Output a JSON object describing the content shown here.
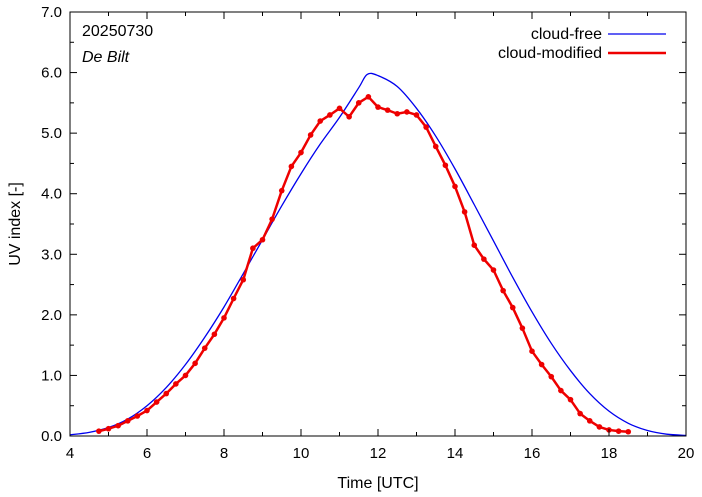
{
  "chart_data": {
    "type": "line",
    "annotations": {
      "date": "20250730",
      "station": "De Bilt"
    },
    "xlabel": "Time  [UTC]",
    "ylabel": "UV index  [-]",
    "xlim": [
      4,
      20
    ],
    "ylim": [
      0,
      7
    ],
    "xticks": [
      4,
      6,
      8,
      10,
      12,
      14,
      16,
      18,
      20
    ],
    "yticks": [
      0,
      1,
      2,
      3,
      4,
      5,
      6,
      7
    ],
    "ytick_labels": [
      "0.0",
      "1.0",
      "2.0",
      "3.0",
      "4.0",
      "5.0",
      "6.0",
      "7.0"
    ],
    "grid": false,
    "legend_position": "top-right",
    "series": [
      {
        "name": "cloud-free",
        "color": "#0000ee",
        "style": "line",
        "peak_time": 11.72,
        "peak_value": 5.97,
        "x": [
          4.0,
          4.5,
          5.0,
          5.5,
          6.0,
          6.5,
          7.0,
          7.5,
          8.0,
          8.5,
          9.0,
          9.5,
          10.0,
          10.5,
          11.0,
          11.5,
          11.72,
          12.0,
          12.5,
          13.0,
          13.5,
          14.0,
          14.5,
          15.0,
          15.5,
          16.0,
          16.5,
          17.0,
          17.5,
          18.0,
          18.5,
          19.0,
          19.5,
          20.0
        ],
        "y": [
          0.02,
          0.06,
          0.14,
          0.28,
          0.5,
          0.8,
          1.18,
          1.63,
          2.13,
          2.68,
          3.24,
          3.8,
          4.33,
          4.82,
          5.26,
          5.75,
          5.97,
          5.95,
          5.77,
          5.41,
          4.95,
          4.41,
          3.82,
          3.22,
          2.62,
          2.05,
          1.53,
          1.08,
          0.7,
          0.41,
          0.21,
          0.09,
          0.03,
          0.01
        ]
      },
      {
        "name": "cloud-modified",
        "color": "#ee0000",
        "style": "line-points",
        "x": [
          4.75,
          5.0,
          5.25,
          5.5,
          5.75,
          6.0,
          6.25,
          6.5,
          6.75,
          7.0,
          7.25,
          7.5,
          7.75,
          8.0,
          8.25,
          8.5,
          8.75,
          9.0,
          9.25,
          9.5,
          9.75,
          10.0,
          10.25,
          10.5,
          10.75,
          11.0,
          11.25,
          11.5,
          11.75,
          12.0,
          12.25,
          12.5,
          12.75,
          13.0,
          13.25,
          13.5,
          13.75,
          14.0,
          14.25,
          14.5,
          14.75,
          15.0,
          15.25,
          15.5,
          15.75,
          16.0,
          16.25,
          16.5,
          16.75,
          17.0,
          17.25,
          17.5,
          17.75,
          18.0,
          18.25,
          18.5
        ],
        "y": [
          0.08,
          0.12,
          0.17,
          0.25,
          0.33,
          0.42,
          0.56,
          0.7,
          0.86,
          1.0,
          1.2,
          1.45,
          1.68,
          1.95,
          2.27,
          2.58,
          3.1,
          3.24,
          3.58,
          4.05,
          4.45,
          4.68,
          4.97,
          5.2,
          5.3,
          5.41,
          5.27,
          5.5,
          5.6,
          5.43,
          5.38,
          5.32,
          5.35,
          5.3,
          5.1,
          4.78,
          4.47,
          4.12,
          3.7,
          3.15,
          2.92,
          2.74,
          2.4,
          2.12,
          1.78,
          1.4,
          1.18,
          0.98,
          0.75,
          0.6,
          0.37,
          0.25,
          0.15,
          0.1,
          0.08,
          0.07
        ]
      }
    ]
  }
}
